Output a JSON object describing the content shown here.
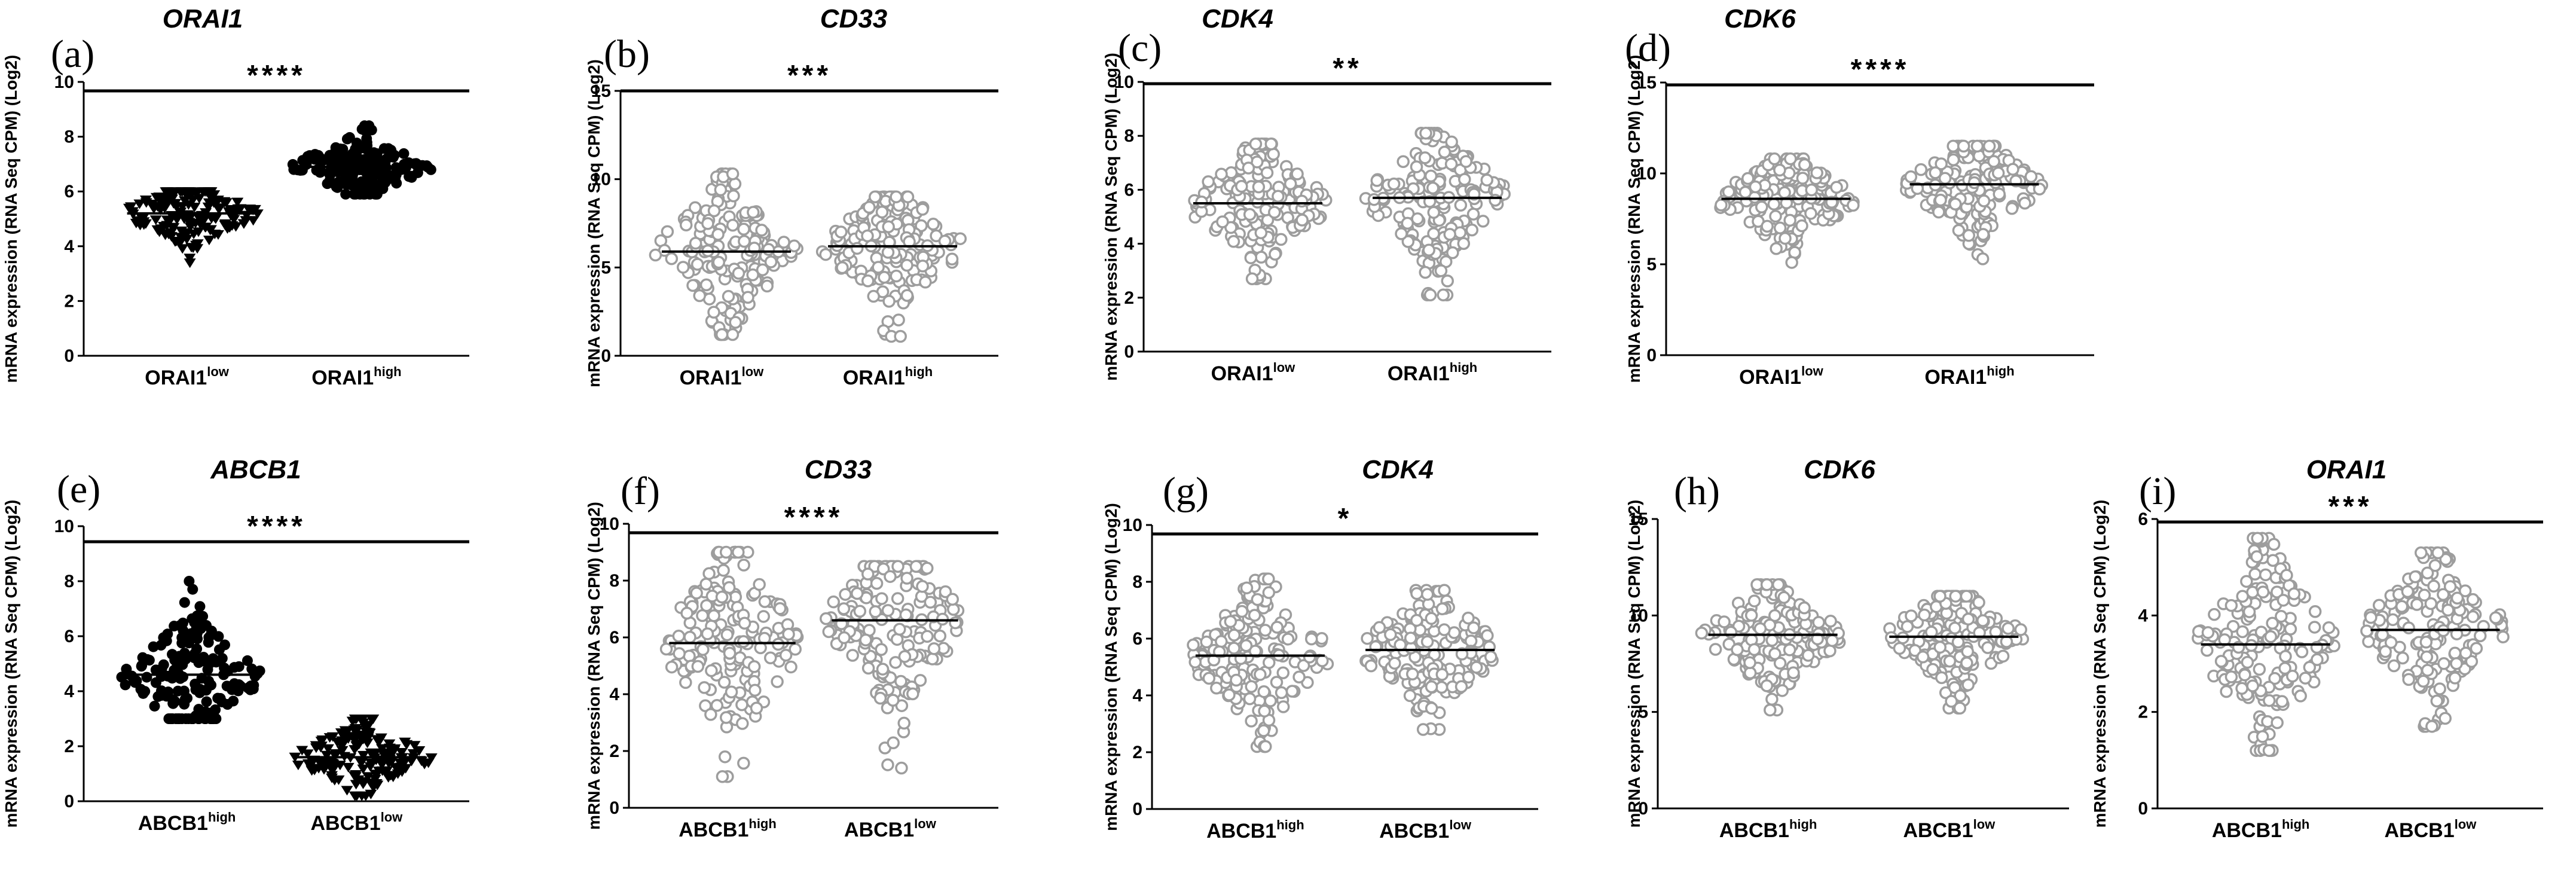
{
  "figure": {
    "colors": {
      "gray": "#9d9d9d",
      "black": "#000000"
    }
  },
  "chart_data": [
    {
      "panel": "(a)",
      "title": "ORAI1",
      "type": "scatter",
      "ylabel": "mRNA expression (RNA Seq CPM) (Log2)",
      "ylim": [
        0,
        10
      ],
      "yticks": [
        0,
        2,
        4,
        6,
        8,
        10
      ],
      "significance": "****",
      "groups": [
        {
          "name": "ORAI1",
          "sup": "low",
          "marker": "triangle-down-filled",
          "median": 5.2,
          "min": 3.4,
          "max": 6.0
        },
        {
          "name": "ORAI1",
          "sup": "high",
          "marker": "circle-filled",
          "median": 6.9,
          "min": 5.9,
          "max": 8.4
        }
      ]
    },
    {
      "panel": "(b)",
      "title": "CD33",
      "type": "scatter",
      "ylabel": "mRNA expression (RNA Seq CPM) (Log2)",
      "ylim": [
        0,
        15
      ],
      "yticks": [
        0,
        5,
        10,
        15
      ],
      "significance": "***",
      "groups": [
        {
          "name": "ORAI1",
          "sup": "low",
          "marker": "circle-open",
          "median": 5.9,
          "min": 1.2,
          "max": 10.3
        },
        {
          "name": "ORAI1",
          "sup": "high",
          "marker": "circle-open",
          "median": 6.2,
          "min": 1.1,
          "max": 9.0
        }
      ]
    },
    {
      "panel": "(c)",
      "title": "CDK4",
      "type": "scatter",
      "ylabel": "mRNA expression (RNA Seq CPM) (Log2)",
      "ylim": [
        0,
        10
      ],
      "yticks": [
        0,
        2,
        4,
        6,
        8,
        10
      ],
      "significance": "**",
      "groups": [
        {
          "name": "ORAI1",
          "sup": "low",
          "marker": "circle-open",
          "median": 5.5,
          "min": 2.7,
          "max": 7.7
        },
        {
          "name": "ORAI1",
          "sup": "high",
          "marker": "circle-open",
          "median": 5.7,
          "min": 2.1,
          "max": 8.1
        }
      ]
    },
    {
      "panel": "(d)",
      "title": "CDK6",
      "type": "scatter",
      "ylabel": "mRNA expression (RNA Seq CPM) (Log2)",
      "ylim": [
        0,
        15
      ],
      "yticks": [
        0,
        5,
        10,
        15
      ],
      "significance": "****",
      "groups": [
        {
          "name": "ORAI1",
          "sup": "low",
          "marker": "circle-open",
          "median": 8.6,
          "min": 5.1,
          "max": 10.8
        },
        {
          "name": "ORAI1",
          "sup": "high",
          "marker": "circle-open",
          "median": 9.4,
          "min": 5.3,
          "max": 11.5
        }
      ]
    },
    {
      "panel": "(e)",
      "title": "ABCB1",
      "type": "scatter",
      "ylabel": "mRNA expression (RNA Seq CPM) (Log2)",
      "ylim": [
        0,
        10
      ],
      "yticks": [
        0,
        2,
        4,
        6,
        8,
        10
      ],
      "significance": "****",
      "groups": [
        {
          "name": "ABCB1",
          "sup": "high",
          "marker": "circle-filled",
          "median": 4.6,
          "min": 3.0,
          "max": 8.0
        },
        {
          "name": "ABCB1",
          "sup": "low",
          "marker": "triangle-down-filled",
          "median": 1.6,
          "min": 0.2,
          "max": 3.0
        }
      ]
    },
    {
      "panel": "(f)",
      "title": "CD33",
      "type": "scatter",
      "ylabel": "mRNA expression (RNA Seq CPM) (Log2)",
      "ylim": [
        0,
        10
      ],
      "yticks": [
        0,
        2,
        4,
        6,
        8,
        10
      ],
      "significance": "****",
      "groups": [
        {
          "name": "ABCB1",
          "sup": "high",
          "marker": "circle-open",
          "median": 5.8,
          "min": 1.1,
          "max": 9.0
        },
        {
          "name": "ABCB1",
          "sup": "low",
          "marker": "circle-open",
          "median": 6.6,
          "min": 1.4,
          "max": 8.5
        }
      ]
    },
    {
      "panel": "(g)",
      "title": "CDK4",
      "type": "scatter",
      "ylabel": "mRNA expression (RNA Seq CPM) (Log2)",
      "ylim": [
        0,
        10
      ],
      "yticks": [
        0,
        2,
        4,
        6,
        8,
        10
      ],
      "significance": "*",
      "groups": [
        {
          "name": "ABCB1",
          "sup": "high",
          "marker": "circle-open",
          "median": 5.4,
          "min": 2.2,
          "max": 8.1
        },
        {
          "name": "ABCB1",
          "sup": "low",
          "marker": "circle-open",
          "median": 5.6,
          "min": 2.8,
          "max": 7.7
        }
      ]
    },
    {
      "panel": "(h)",
      "title": "CDK6",
      "type": "scatter",
      "ylabel": "mRNA expression (RNA Seq CPM) (Log2)",
      "ylim": [
        0,
        15
      ],
      "yticks": [
        0,
        5,
        10,
        15
      ],
      "significance": "",
      "groups": [
        {
          "name": "ABCB1",
          "sup": "high",
          "marker": "circle-open",
          "median": 9.0,
          "min": 5.1,
          "max": 11.6
        },
        {
          "name": "ABCB1",
          "sup": "low",
          "marker": "circle-open",
          "median": 8.9,
          "min": 5.2,
          "max": 11.0
        }
      ]
    },
    {
      "panel": "(i)",
      "title": "ORAI1",
      "type": "scatter",
      "ylabel": "mRNA expression (RNA Seq CPM) (Log2)",
      "ylim": [
        0,
        6
      ],
      "yticks": [
        0,
        2,
        4,
        6
      ],
      "significance": "***",
      "groups": [
        {
          "name": "ABCB1",
          "sup": "high",
          "marker": "circle-open",
          "median": 3.4,
          "min": 1.2,
          "max": 5.6
        },
        {
          "name": "ABCB1",
          "sup": "low",
          "marker": "circle-open",
          "median": 3.7,
          "min": 1.7,
          "max": 5.3
        }
      ]
    }
  ]
}
